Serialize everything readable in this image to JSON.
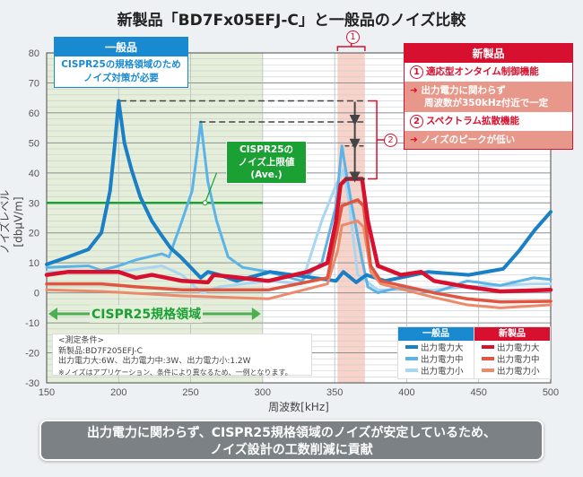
{
  "title": "新製品「BD7Fx05EFJ-C」と一般品のノイズ比較",
  "general_box": {
    "header": "一般品",
    "line1": "CISPR25の規格領域のため",
    "line2": "ノイズ対策が必要"
  },
  "new_box": {
    "header": "新製品",
    "item1_num": "1",
    "item1": "適応型オンタイム制御機能",
    "item1_result_line1": "出力電力に関わらず",
    "item1_result_line2": "周波数が350kHz付近で一定",
    "item2_num": "2",
    "item2": "スペクトラム拡散機能",
    "item2_result": "ノイズのピークが低い",
    "arrow": "➜"
  },
  "limit_box": {
    "line1": "CISPR25の",
    "line2": "ノイズ上限値",
    "line3": "(Ave.)"
  },
  "callout1": "1",
  "callout2": "2",
  "region_label": "CISPR25規格領域",
  "conditions": {
    "line1": "<測定条件>",
    "line2": "新製品:BD7F205EFJ-C",
    "line3": "出力電力大:6W、出力電力中:3W、出力電力小:1.2W",
    "line4": "※ノイズはアプリケーション、条件により異なるため、一例となります。"
  },
  "legend": {
    "general_header": "一般品",
    "new_header": "新製品",
    "large": "出力電力大",
    "mid": "出力電力中",
    "small": "出力電力小"
  },
  "banner": {
    "line1": "出力電力に関わらず、CISPR25規格領域のノイズが安定しているため、",
    "line2": "ノイズ設計の工数削減に貢献"
  },
  "colors": {
    "general_large": "#1a7fc4",
    "general_mid": "#5cb3e6",
    "general_small": "#a9d6f2",
    "new_large": "#d6102e",
    "new_mid": "#e0553f",
    "new_small": "#ec8a6c",
    "limit": "#1aa033",
    "region": "#e4eed9",
    "band": "#f6cbbf"
  },
  "chart_data": {
    "type": "line",
    "xlabel": "周波数[kHz]",
    "ylabel": "ノイズレベル[dbμV/m]",
    "xlim": [
      150,
      500
    ],
    "ylim": [
      -30,
      80
    ],
    "xticks": [
      150,
      200,
      250,
      300,
      350,
      400,
      450,
      500
    ],
    "yticks": [
      -30,
      -20,
      -10,
      0,
      10,
      20,
      30,
      40,
      50,
      60,
      70,
      80
    ],
    "limit_line": {
      "y": 30,
      "x": [
        150,
        300
      ]
    },
    "cispr25_region": [
      150,
      300
    ],
    "switching_band": [
      352,
      371
    ],
    "peak_markers": [
      64,
      57,
      49,
      38
    ],
    "series": [
      {
        "name": "一般品 出力電力大",
        "key": "general_large",
        "width": 4,
        "x": [
          150,
          165,
          179,
          188,
          194,
          197,
          200,
          204,
          209,
          215,
          223,
          230,
          236,
          243,
          251,
          257,
          262,
          270,
          282,
          305,
          328,
          351,
          356,
          365,
          372,
          385,
          415,
          443,
          467,
          478,
          489,
          500
        ],
        "y": [
          9.5,
          12,
          14.5,
          20,
          34,
          48,
          64,
          50,
          41,
          32,
          24,
          19,
          15,
          12,
          8,
          5,
          7,
          6,
          4,
          7,
          5.5,
          4,
          7,
          3.5,
          6,
          4,
          7,
          6,
          8,
          14,
          21,
          27
        ]
      },
      {
        "name": "一般品 出力電力中",
        "key": "general_mid",
        "width": 3,
        "x": [
          150,
          179,
          188,
          200,
          212,
          230,
          235,
          244,
          251,
          254,
          257,
          262,
          268,
          276,
          286,
          304,
          327,
          341,
          351,
          355,
          358,
          362,
          369,
          373,
          380,
          396,
          419,
          442,
          465,
          488,
          500
        ],
        "y": [
          8.5,
          9,
          7.5,
          9,
          11,
          13,
          12,
          24,
          34,
          45,
          57,
          37,
          24,
          12,
          8.5,
          7,
          4,
          10,
          29,
          49,
          40,
          29,
          11,
          2,
          0,
          2,
          0,
          4,
          2.5,
          5,
          4.5
        ]
      },
      {
        "name": "一般品 出力電力小",
        "key": "general_small",
        "width": 3,
        "x": [
          150,
          200,
          230,
          244,
          253,
          258,
          270,
          304,
          327,
          341,
          351,
          356,
          360,
          366,
          380,
          396,
          419,
          442,
          488,
          500
        ],
        "y": [
          7,
          7,
          9,
          6,
          2,
          0,
          2,
          4,
          3,
          24,
          36,
          41,
          30,
          6,
          1,
          1,
          1,
          2,
          3,
          3
        ]
      },
      {
        "name": "新製品 出力電力大",
        "key": "new_large",
        "width": 4.5,
        "x": [
          150,
          165,
          200,
          212,
          223,
          244,
          262,
          266,
          304,
          331,
          345,
          351,
          354,
          358,
          365,
          369,
          373,
          380,
          396,
          410,
          419,
          442,
          465,
          500
        ],
        "y": [
          6,
          7,
          7,
          5,
          6,
          4,
          3.5,
          6,
          4,
          7,
          10,
          24,
          36,
          38,
          38,
          38,
          24,
          9,
          6,
          7,
          4,
          2,
          0.5,
          1
        ]
      },
      {
        "name": "新製品 出力電力中",
        "key": "new_mid",
        "width": 3.5,
        "x": [
          150,
          188,
          212,
          244,
          304,
          345,
          351,
          355,
          366,
          370,
          375,
          382,
          419,
          442,
          465,
          500
        ],
        "y": [
          3,
          3,
          2,
          1,
          1,
          5,
          19,
          29,
          31,
          29,
          9,
          4,
          0,
          -2,
          -3,
          -2.8
        ]
      },
      {
        "name": "新製品 出力電力小",
        "key": "new_small",
        "width": 3,
        "x": [
          150,
          188,
          244,
          304,
          345,
          352,
          355,
          366,
          370,
          375,
          382,
          419,
          442,
          465,
          500
        ],
        "y": [
          1,
          0.5,
          -1,
          -2,
          3,
          14,
          22.5,
          24,
          22,
          7,
          3,
          -1.5,
          -4,
          -5,
          -4
        ]
      }
    ]
  }
}
